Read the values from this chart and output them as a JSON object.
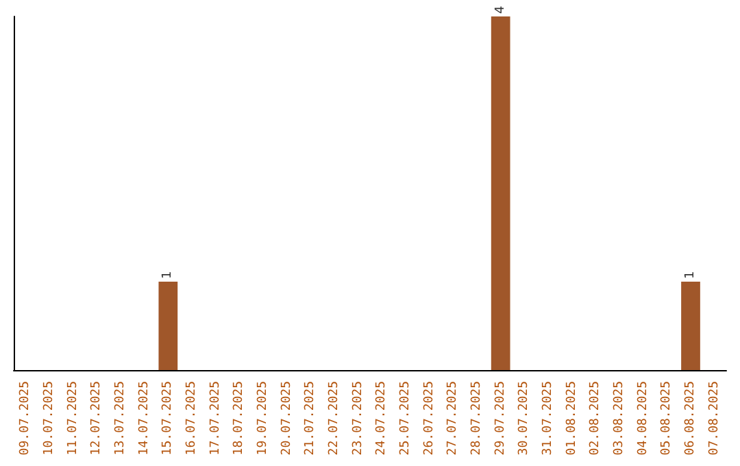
{
  "chart_data": {
    "type": "bar",
    "categories": [
      "09.07.2025",
      "10.07.2025",
      "11.07.2025",
      "12.07.2025",
      "13.07.2025",
      "14.07.2025",
      "15.07.2025",
      "16.07.2025",
      "17.07.2025",
      "18.07.2025",
      "19.07.2025",
      "20.07.2025",
      "21.07.2025",
      "22.07.2025",
      "23.07.2025",
      "24.07.2025",
      "25.07.2025",
      "26.07.2025",
      "27.07.2025",
      "28.07.2025",
      "29.07.2025",
      "30.07.2025",
      "31.07.2025",
      "01.08.2025",
      "02.08.2025",
      "03.08.2025",
      "04.08.2025",
      "05.08.2025",
      "06.08.2025",
      "07.08.2025"
    ],
    "values": [
      0,
      0,
      0,
      0,
      0,
      0,
      1,
      0,
      0,
      0,
      0,
      0,
      0,
      0,
      0,
      0,
      0,
      0,
      0,
      0,
      4,
      0,
      0,
      0,
      0,
      0,
      0,
      0,
      1,
      0
    ],
    "value_labels": [
      null,
      null,
      null,
      null,
      null,
      null,
      "1",
      null,
      null,
      null,
      null,
      null,
      null,
      null,
      null,
      null,
      null,
      null,
      null,
      null,
      "4",
      null,
      null,
      null,
      null,
      null,
      null,
      null,
      "1",
      null
    ],
    "color": "#a0572a",
    "grid": false,
    "tick_labels": "x"
  }
}
